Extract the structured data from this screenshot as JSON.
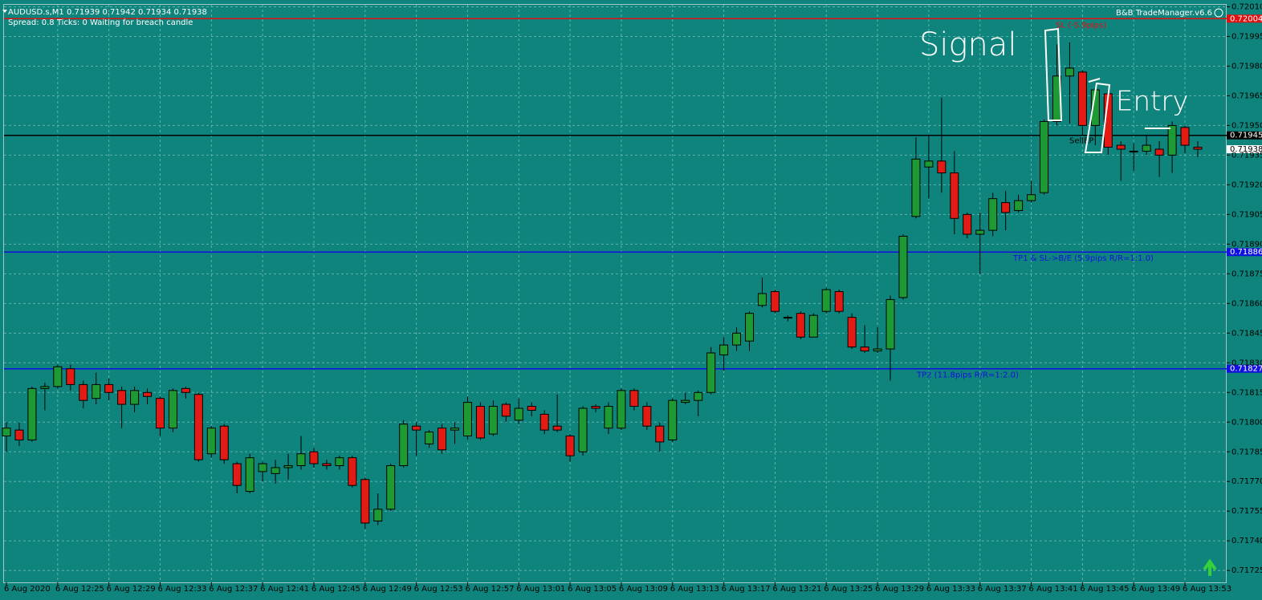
{
  "header": {
    "symbol_line": "AUDUSD.s,M1  0.71939 0.71942 0.71934 0.71938",
    "status_line": "Spread: 0.8  Ticks: 0  Waiting for breach candle",
    "tool": "B&B TradeManager.v6.6"
  },
  "chart_data": {
    "type": "candlestick",
    "categories": [
      "6 Aug 2020",
      null,
      null,
      null,
      "6 Aug 12:25",
      null,
      null,
      null,
      "6 Aug 12:29",
      null,
      null,
      null,
      "6 Aug 12:33",
      null,
      null,
      null,
      "6 Aug 12:37",
      null,
      null,
      null,
      "6 Aug 12:41",
      null,
      null,
      null,
      "6 Aug 12:45",
      null,
      null,
      null,
      "6 Aug 12:49",
      null,
      null,
      null,
      "6 Aug 12:53",
      null,
      null,
      null,
      "6 Aug 12:57",
      null,
      null,
      null,
      "6 Aug 13:01",
      null,
      null,
      null,
      "6 Aug 13:05",
      null,
      null,
      null,
      "6 Aug 13:09",
      null,
      null,
      null,
      "6 Aug 13:13",
      null,
      null,
      null,
      "6 Aug 13:17",
      null,
      null,
      null,
      "6 Aug 13:21",
      null,
      null,
      null,
      "6 Aug 13:25",
      null,
      null,
      null,
      "6 Aug 13:29",
      null,
      null,
      null,
      "6 Aug 13:33",
      null,
      null,
      null,
      "6 Aug 13:37",
      null,
      null,
      null,
      "6 Aug 13:41",
      null,
      null,
      null,
      "6 Aug 13:45",
      null,
      null,
      null,
      "6 Aug 13:49",
      null,
      null,
      null,
      "6 Aug 13:53",
      null
    ],
    "open": [
      0.71793,
      0.71796,
      0.71791,
      0.71817,
      0.71818,
      0.71827,
      0.71819,
      0.71812,
      0.71819,
      0.71816,
      0.71809,
      0.71815,
      0.71812,
      0.71797,
      0.71817,
      0.71814,
      0.71784,
      0.71798,
      0.71779,
      0.71765,
      0.71775,
      0.71774,
      0.71777,
      0.71778,
      0.71785,
      0.71779,
      0.71778,
      0.71782,
      0.71771,
      0.7175,
      0.71756,
      0.71778,
      0.71798,
      0.71789,
      0.71797,
      0.71796,
      0.71793,
      0.71808,
      0.71794,
      0.71809,
      0.71801,
      0.71808,
      0.71804,
      0.71798,
      0.71793,
      0.71785,
      0.71808,
      0.71797,
      0.71797,
      0.71816,
      0.71808,
      0.71798,
      0.71791,
      0.7181,
      0.71811,
      0.71815,
      0.71834,
      0.71839,
      0.71841,
      0.71859,
      0.71866,
      0.71853,
      0.71855,
      0.71843,
      0.71856,
      0.71866,
      0.71853,
      0.71838,
      0.71836,
      0.71837,
      0.71863,
      0.71904,
      0.71929,
      0.71932,
      0.71926,
      0.71905,
      0.71895,
      0.71897,
      0.71911,
      0.71907,
      0.71912,
      0.71916,
      0.71952,
      0.71975,
      0.71977,
      0.7195,
      0.71966,
      0.7194,
      0.71937,
      0.71937,
      0.71938,
      0.71935,
      0.71949,
      0.71939
    ],
    "high": [
      0.718,
      0.718,
      0.71818,
      0.7182,
      0.71829,
      0.71829,
      0.71821,
      0.71825,
      0.71822,
      0.71818,
      0.71818,
      0.71817,
      0.71813,
      0.71817,
      0.71818,
      0.71815,
      0.71798,
      0.71799,
      0.7178,
      0.71784,
      0.7178,
      0.71781,
      0.71784,
      0.71793,
      0.71787,
      0.71781,
      0.71783,
      0.71783,
      0.71772,
      0.71764,
      0.71779,
      0.71801,
      0.718,
      0.71796,
      0.71799,
      0.718,
      0.71813,
      0.7181,
      0.71811,
      0.7181,
      0.71812,
      0.7181,
      0.71806,
      0.71814,
      0.71794,
      0.71808,
      0.71809,
      0.7181,
      0.71817,
      0.71817,
      0.7181,
      0.718,
      0.71812,
      0.71815,
      0.71816,
      0.71838,
      0.71843,
      0.71848,
      0.71856,
      0.71873,
      0.71867,
      0.71854,
      0.71856,
      0.71855,
      0.71868,
      0.71867,
      0.71855,
      0.71849,
      0.71848,
      0.71864,
      0.71895,
      0.71944,
      0.71945,
      0.71964,
      0.71937,
      0.71906,
      0.71906,
      0.71916,
      0.71917,
      0.71915,
      0.71922,
      0.71953,
      0.71991,
      0.71992,
      0.71978,
      0.71969,
      0.71968,
      0.71942,
      0.71941,
      0.71945,
      0.71942,
      0.71952,
      0.7195,
      0.71942
    ],
    "low": [
      0.71785,
      0.71788,
      0.7179,
      0.71806,
      0.71817,
      0.71816,
      0.71807,
      0.71809,
      0.71811,
      0.71797,
      0.71805,
      0.71809,
      0.71793,
      0.71795,
      0.71812,
      0.7178,
      0.71782,
      0.71779,
      0.71764,
      0.71764,
      0.7177,
      0.71769,
      0.71771,
      0.71776,
      0.71777,
      0.71776,
      0.71776,
      0.71767,
      0.71746,
      0.71748,
      0.71755,
      0.71777,
      0.71783,
      0.71787,
      0.71784,
      0.71789,
      0.71791,
      0.71791,
      0.71793,
      0.718,
      0.71799,
      0.71803,
      0.71794,
      0.71795,
      0.7178,
      0.71783,
      0.71805,
      0.71794,
      0.71796,
      0.71806,
      0.71796,
      0.71785,
      0.7179,
      0.71809,
      0.71803,
      0.71814,
      0.71826,
      0.71836,
      0.71836,
      0.71858,
      0.71855,
      0.71851,
      0.71842,
      0.71843,
      0.71855,
      0.71855,
      0.71837,
      0.71835,
      0.71835,
      0.71821,
      0.71862,
      0.71903,
      0.71913,
      0.71916,
      0.71895,
      0.71893,
      0.71875,
      0.71894,
      0.71897,
      0.71906,
      0.71911,
      0.71915,
      0.7195,
      0.71951,
      0.71945,
      0.7194,
      0.71935,
      0.71922,
      0.71927,
      0.71935,
      0.71924,
      0.71926,
      0.71936,
      0.71934
    ],
    "close": [
      0.71797,
      0.71791,
      0.71817,
      0.71818,
      0.71828,
      0.71819,
      0.71811,
      0.71819,
      0.71815,
      0.71809,
      0.71816,
      0.71813,
      0.71797,
      0.71816,
      0.71815,
      0.71781,
      0.71797,
      0.71781,
      0.71768,
      0.71782,
      0.71779,
      0.71777,
      0.71778,
      0.71784,
      0.71779,
      0.71778,
      0.71782,
      0.71768,
      0.71749,
      0.71756,
      0.71778,
      0.71799,
      0.71796,
      0.71795,
      0.71786,
      0.71797,
      0.7181,
      0.71792,
      0.71808,
      0.71803,
      0.71807,
      0.71806,
      0.71796,
      0.71796,
      0.71783,
      0.71807,
      0.71807,
      0.71808,
      0.71816,
      0.71808,
      0.71798,
      0.7179,
      0.71811,
      0.71811,
      0.71815,
      0.71835,
      0.71839,
      0.71845,
      0.71855,
      0.71865,
      0.71856,
      0.71853,
      0.71843,
      0.71854,
      0.71867,
      0.71856,
      0.71838,
      0.71836,
      0.71837,
      0.71862,
      0.71894,
      0.71933,
      0.71932,
      0.71926,
      0.71903,
      0.71895,
      0.71897,
      0.71913,
      0.71906,
      0.71912,
      0.71915,
      0.71952,
      0.71975,
      0.71979,
      0.7195,
      0.71968,
      0.71939,
      0.71938,
      0.71937,
      0.7194,
      0.71935,
      0.7195,
      0.7194,
      0.71938
    ],
    "up_color": "#1e9a34",
    "down_color": "#e31b14",
    "ylim": [
      0.71719,
      0.72011
    ],
    "yticks": [
      {
        "value": 0.7201,
        "label": "0.72010"
      },
      0.71995,
      {
        "value": 0.7198,
        "label": "0.71980"
      },
      0.71965,
      {
        "value": 0.7195,
        "label": "0.71950"
      },
      0.71935,
      {
        "value": 0.7192,
        "label": "0.71920"
      },
      0.71905,
      {
        "value": 0.7189,
        "label": "0.71890"
      },
      0.71875,
      {
        "value": 0.7186,
        "label": "0.71860"
      },
      0.71845,
      {
        "value": 0.7183,
        "label": "0.71830"
      },
      0.71815,
      {
        "value": 0.718,
        "label": "0.71800"
      },
      0.71785,
      {
        "value": 0.7177,
        "label": "0.71770"
      },
      0.71755,
      {
        "value": 0.7174,
        "label": "0.71740"
      },
      0.71725
    ],
    "grid": true,
    "levels": [
      {
        "value": 0.72004,
        "text": "SL (-5.9pips)",
        "color": "#e01010"
      },
      {
        "value": 0.71945,
        "text": "SellEP",
        "color": "#000000"
      },
      {
        "value": 0.71886,
        "text": "TP1 & SL->B/E (5.9pips R/R=1:1.0)",
        "color": "#1010e0"
      },
      {
        "value": 0.71827,
        "text": "TP2 (11.8pips R/R=1:2.0)",
        "color": "#1010e0"
      }
    ],
    "current_price": 0.71938,
    "annotations": [
      "Signal",
      "Entry"
    ]
  }
}
